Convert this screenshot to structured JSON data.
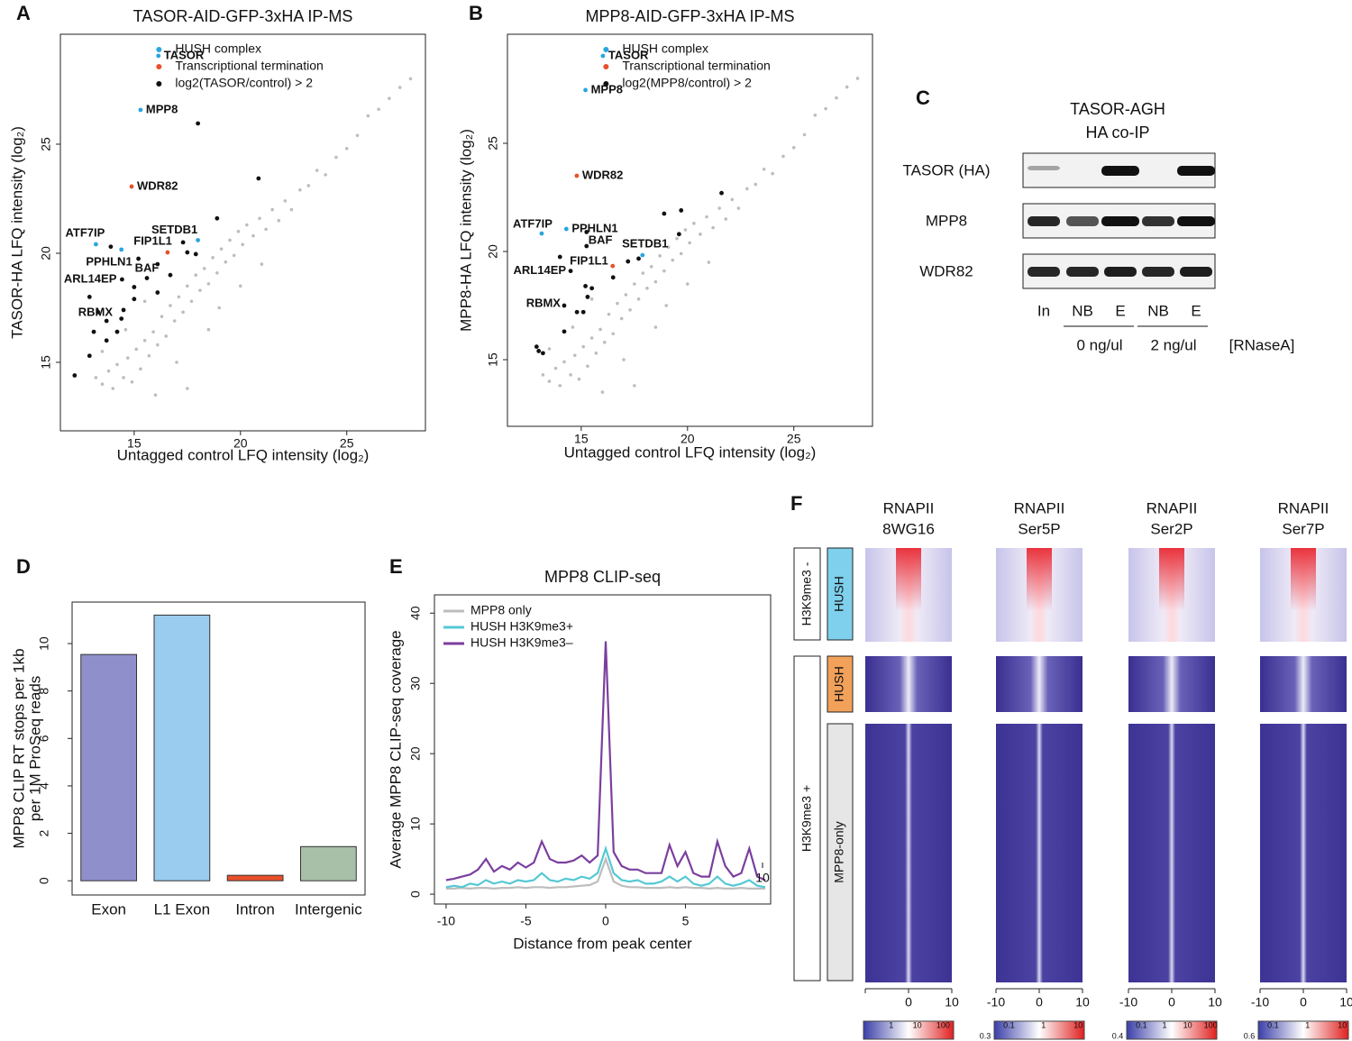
{
  "chart_data": [
    {
      "panel": "A",
      "type": "scatter",
      "title": "TASOR-AID-GFP-3xHA IP-MS",
      "x_label": "Untagged control LFQ intensity (log₂)",
      "y_label": "TASOR-HA LFQ intensity (log₂)",
      "xlim": [
        11.53,
        28.7
      ],
      "ylim": [
        11.86,
        30.04
      ],
      "xticks": [
        15,
        20,
        25
      ],
      "yticks": [
        15,
        20,
        25
      ],
      "legend": "top",
      "series": [
        {
          "color": "#bdbdbd",
          "x": [
            13.2,
            13.5,
            13.8,
            14.0,
            14.2,
            14.5,
            14.7,
            14.9,
            15.1,
            15.3,
            15.5,
            15.7,
            15.9,
            16.1,
            16.3,
            16.5,
            16.7,
            16.9,
            17.1,
            17.3,
            17.5,
            17.7,
            17.9,
            18.1,
            18.3,
            18.5,
            18.7,
            18.9,
            19.1,
            19.3,
            19.5,
            19.7,
            19.9,
            20.1,
            20.3,
            20.6,
            20.9,
            21.2,
            21.5,
            21.8,
            22.1,
            22.4,
            22.8,
            23.2,
            23.6,
            24.0,
            24.5,
            25.0,
            25.5,
            26.0,
            26.5,
            27.0,
            27.5,
            28.0,
            14.6,
            16.0,
            17.0,
            18.5,
            20.0,
            15.5,
            13.5,
            19.0,
            21.0,
            17.5
          ],
          "y": [
            14.3,
            14.0,
            14.6,
            13.8,
            14.9,
            14.3,
            15.2,
            14.1,
            15.6,
            14.7,
            16.0,
            15.3,
            16.4,
            15.8,
            17.1,
            16.2,
            17.6,
            16.9,
            18.0,
            17.3,
            18.5,
            17.8,
            19.0,
            18.3,
            19.3,
            18.6,
            19.8,
            19.1,
            20.2,
            19.6,
            20.6,
            19.9,
            21.0,
            20.4,
            21.3,
            20.8,
            21.6,
            21.1,
            22.0,
            21.5,
            22.4,
            22.0,
            22.9,
            23.1,
            23.8,
            23.6,
            24.4,
            24.8,
            25.4,
            26.3,
            26.6,
            27.1,
            27.6,
            28.0,
            16.5,
            13.5,
            15.0,
            16.5,
            18.5,
            17.8,
            15.5,
            17.5,
            19.5,
            13.8
          ]
        },
        {
          "name": "HUSH complex",
          "color": "#2aa6df",
          "x": [
            16.14,
            15.3,
            13.2,
            14.4,
            18.0
          ],
          "y": [
            29.05,
            26.57,
            20.41,
            20.17,
            20.6
          ],
          "point_labels": [
            "TASOR",
            "MPP8",
            "ATF7IP",
            "PPHLN1",
            "SETDB1"
          ]
        },
        {
          "name": "Transcriptional termination",
          "color": "#e8502a",
          "x": [
            14.88,
            16.57
          ],
          "y": [
            23.06,
            20.04
          ],
          "point_labels": [
            "WDR82",
            "FIP1L1"
          ]
        },
        {
          "name": "log2(TASOR/control) > 2",
          "color": "#111111",
          "x": [
            18.0,
            20.85,
            18.9,
            13.9,
            15.2,
            14.43,
            14.5,
            17.3,
            17.5,
            17.9,
            16.1,
            16.7,
            15.6,
            15.0,
            16.1,
            12.9,
            15.0,
            13.3,
            13.7,
            14.4,
            13.1,
            14.2,
            13.7,
            12.9,
            12.2
          ],
          "y": [
            25.95,
            23.43,
            21.6,
            20.3,
            19.75,
            18.8,
            17.4,
            20.5,
            20.04,
            19.96,
            19.5,
            19.0,
            18.86,
            18.45,
            18.2,
            18.0,
            17.9,
            17.3,
            16.9,
            17.0,
            16.4,
            16.4,
            16.0,
            15.3,
            14.4
          ],
          "point_labels": [
            null,
            null,
            null,
            null,
            "BAF",
            "ARL14EP",
            "RBMX",
            null,
            null,
            null,
            null,
            null,
            null,
            null,
            null,
            null,
            null,
            null,
            null,
            null,
            null,
            null,
            null,
            null,
            null
          ]
        }
      ]
    },
    {
      "panel": "B",
      "type": "scatter",
      "title": "MPP8-AID-GFP-3xHA IP-MS",
      "x_label": "Untagged control LFQ intensity (log₂)",
      "y_label": "MPP8-HA LFQ intensity (log₂)",
      "xlim": [
        11.53,
        28.7
      ],
      "ylim": [
        11.92,
        30.04
      ],
      "xticks": [
        15,
        20,
        25
      ],
      "yticks": [
        15,
        20,
        25
      ],
      "legend": "top",
      "series": [
        {
          "color": "#bdbdbd",
          "x": [
            13.2,
            13.5,
            13.8,
            14.0,
            14.2,
            14.5,
            14.7,
            14.9,
            15.1,
            15.3,
            15.5,
            15.7,
            15.9,
            16.1,
            16.3,
            16.5,
            16.7,
            16.9,
            17.1,
            17.3,
            17.5,
            17.7,
            17.9,
            18.1,
            18.3,
            18.5,
            18.7,
            18.9,
            19.1,
            19.3,
            19.5,
            19.7,
            19.9,
            20.1,
            20.3,
            20.6,
            20.9,
            21.2,
            21.5,
            21.8,
            22.1,
            22.4,
            22.8,
            23.2,
            23.6,
            24.0,
            24.5,
            25.0,
            25.5,
            26.0,
            26.5,
            27.0,
            27.5,
            28.0,
            14.6,
            16.0,
            17.0,
            18.5,
            20.0,
            15.5,
            13.5,
            19.0,
            21.0,
            17.5
          ],
          "y": [
            14.3,
            14.0,
            14.6,
            13.8,
            14.9,
            14.3,
            15.2,
            14.1,
            15.6,
            14.7,
            16.0,
            15.3,
            16.4,
            15.8,
            17.1,
            16.2,
            17.6,
            16.9,
            18.0,
            17.3,
            18.5,
            17.8,
            19.0,
            18.3,
            19.3,
            18.6,
            19.8,
            19.1,
            20.2,
            19.6,
            20.6,
            19.9,
            21.0,
            20.4,
            21.3,
            20.8,
            21.6,
            21.1,
            22.0,
            21.5,
            22.4,
            22.0,
            22.9,
            23.1,
            23.8,
            23.6,
            24.4,
            24.8,
            25.4,
            26.3,
            26.6,
            27.1,
            27.6,
            28.0,
            16.5,
            13.5,
            15.0,
            16.5,
            18.5,
            17.8,
            15.5,
            17.5,
            19.5,
            13.8
          ]
        },
        {
          "name": "HUSH complex",
          "color": "#2aa6df",
          "x": [
            16.02,
            15.2,
            13.14,
            14.3,
            17.88
          ],
          "y": [
            29.04,
            27.46,
            20.83,
            21.04,
            19.83
          ],
          "point_labels": [
            "TASOR",
            "MPP8",
            "ATF7IP",
            "PPHLN1",
            "SETDB1"
          ]
        },
        {
          "name": "Transcriptional termination",
          "color": "#e8502a",
          "x": [
            14.79,
            16.48
          ],
          "y": [
            23.5,
            19.33
          ],
          "point_labels": [
            "WDR82",
            "FIP1L1"
          ]
        },
        {
          "name": "log2(MPP8/control) > 2",
          "color": "#111111",
          "x": [
            21.6,
            18.9,
            19.7,
            15.25,
            19.6,
            15.25,
            17.7,
            17.2,
            14.0,
            14.5,
            16.5,
            15.2,
            15.5,
            15.3,
            14.2,
            14.8,
            15.1,
            14.2,
            12.9,
            13.0,
            13.2
          ],
          "y": [
            22.7,
            21.75,
            21.9,
            20.9,
            20.8,
            20.25,
            19.67,
            19.54,
            19.75,
            19.1,
            18.8,
            18.4,
            18.3,
            17.9,
            17.5,
            17.2,
            17.2,
            16.3,
            15.6,
            15.4,
            15.3
          ],
          "point_labels": [
            null,
            null,
            null,
            null,
            null,
            "BAF",
            null,
            null,
            null,
            "ARL14EP",
            null,
            null,
            null,
            null,
            "RBMX",
            null,
            null,
            null,
            null,
            null,
            null
          ]
        }
      ]
    },
    {
      "panel": "D",
      "type": "bar",
      "y_label": [
        "MPP8 CLIP RT stops per 1kb",
        "per 1M ProSeq reads"
      ],
      "categories": [
        "Exon",
        "L1 Exon",
        "Intron",
        "Intergenic"
      ],
      "values": [
        9.54,
        11.2,
        0.23,
        1.44
      ],
      "colors": [
        "#8f8fcc",
        "#99ccee",
        "#e8502a",
        "#a8bfa8"
      ],
      "ylim": [
        -0.6,
        11.75
      ],
      "yticks": [
        0,
        2,
        4,
        6,
        8,
        10
      ]
    },
    {
      "panel": "E",
      "type": "line",
      "title": "MPP8 CLIP-seq",
      "x_label": "Distance from peak center",
      "y_label": "Average MPP8 CLIP-seq coverage",
      "x": [
        -10,
        -9.5,
        -9,
        -8.5,
        -8,
        -7.5,
        -7,
        -6.5,
        -6,
        -5.5,
        -5,
        -4.5,
        -4,
        -3.5,
        -3,
        -2.5,
        -2,
        -1.5,
        -1,
        -0.5,
        0,
        0.5,
        1,
        1.5,
        2,
        2.5,
        3,
        3.5,
        4,
        4.5,
        5,
        5.5,
        6,
        6.5,
        7,
        7.5,
        8,
        8.5,
        9,
        9.5,
        10
      ],
      "xlim": [
        -10.73,
        10.34
      ],
      "xticks": [
        -10,
        -5,
        0,
        5
      ],
      "ylim": [
        -1.4,
        42.6
      ],
      "yticks": [
        0,
        10,
        20,
        30,
        40
      ],
      "legend": "top-left",
      "annotation": "10",
      "series": [
        {
          "name": "MPP8 only",
          "color": "#bdbdbd",
          "values": [
            0.8,
            0.8,
            0.9,
            0.8,
            0.9,
            0.9,
            0.8,
            0.9,
            0.9,
            1,
            0.9,
            1,
            1,
            0.9,
            1,
            1,
            1.1,
            1.2,
            1.3,
            1.8,
            5,
            1.8,
            1.2,
            1,
            1,
            0.9,
            0.9,
            0.9,
            1,
            0.9,
            1,
            0.9,
            0.9,
            0.8,
            0.9,
            0.8,
            0.8,
            0.9,
            0.8,
            0.8,
            0.8
          ]
        },
        {
          "name": "HUSH H3K9me3+",
          "color": "#55c8d4",
          "values": [
            1,
            1.2,
            1,
            1.5,
            1.3,
            2,
            1.5,
            1.8,
            1.5,
            2,
            1.8,
            2,
            3,
            2,
            1.8,
            2.2,
            2,
            2.5,
            2.2,
            3,
            6.5,
            3,
            2,
            1.8,
            2,
            1.5,
            1.5,
            1.8,
            2.5,
            1.8,
            2.5,
            1.5,
            1.2,
            1.5,
            2.5,
            1.5,
            1.2,
            1.5,
            2,
            1.2,
            1
          ]
        },
        {
          "name": "HUSH H3K9me3–",
          "color": "#7b3f9e",
          "values": [
            2,
            2.2,
            2.5,
            2.8,
            3.5,
            5,
            3.2,
            4,
            3.5,
            4.5,
            3.8,
            4.5,
            7.5,
            5,
            4.5,
            4.5,
            4.8,
            5.5,
            4.5,
            5.5,
            36,
            6,
            4,
            3.5,
            3.5,
            3,
            3,
            3,
            7,
            4,
            6,
            3,
            2.5,
            2.5,
            7.5,
            4,
            2.5,
            3,
            6.5,
            2.5,
            2
          ]
        }
      ]
    }
  ],
  "blot": {
    "panel": "C",
    "title_lines": [
      "TASOR-AGH",
      "HA co-IP"
    ],
    "rows": [
      "TASOR (HA)",
      "MPP8",
      "WDR82"
    ],
    "lanes": [
      "In",
      "NB",
      "E",
      "NB",
      "E"
    ],
    "conditions": [
      "0 ng/ul",
      "2 ng/ul"
    ],
    "condition_label": "[RNaseA]"
  },
  "heatmap": {
    "panel": "F",
    "row_groups": [
      "H3K9me3 -",
      "H3K9me3 +"
    ],
    "subgroups": [
      "HUSH",
      "HUSH",
      "MPP8-only"
    ],
    "columns": [
      {
        "line1": "RNAPII",
        "line2": "8WG16",
        "x_ticks": [
          "0",
          "10"
        ],
        "colorbar_labels": [
          "1",
          "10",
          "100"
        ]
      },
      {
        "line1": "RNAPII",
        "line2": "Ser5P",
        "x_ticks": [
          "-10",
          "0",
          "10"
        ],
        "colorbar_labels": [
          "0.3",
          "0.1",
          "1",
          "10"
        ]
      },
      {
        "line1": "RNAPII",
        "line2": "Ser2P",
        "x_ticks": [
          "-10",
          "0",
          "10"
        ],
        "colorbar_labels": [
          "0.4",
          "0.1",
          "1",
          "10",
          "100"
        ]
      },
      {
        "line1": "RNAPII",
        "line2": "Ser7P",
        "x_ticks": [
          "-10",
          "0",
          "10"
        ],
        "colorbar_labels": [
          "0.6",
          "0.1",
          "1",
          "10"
        ]
      }
    ]
  }
}
